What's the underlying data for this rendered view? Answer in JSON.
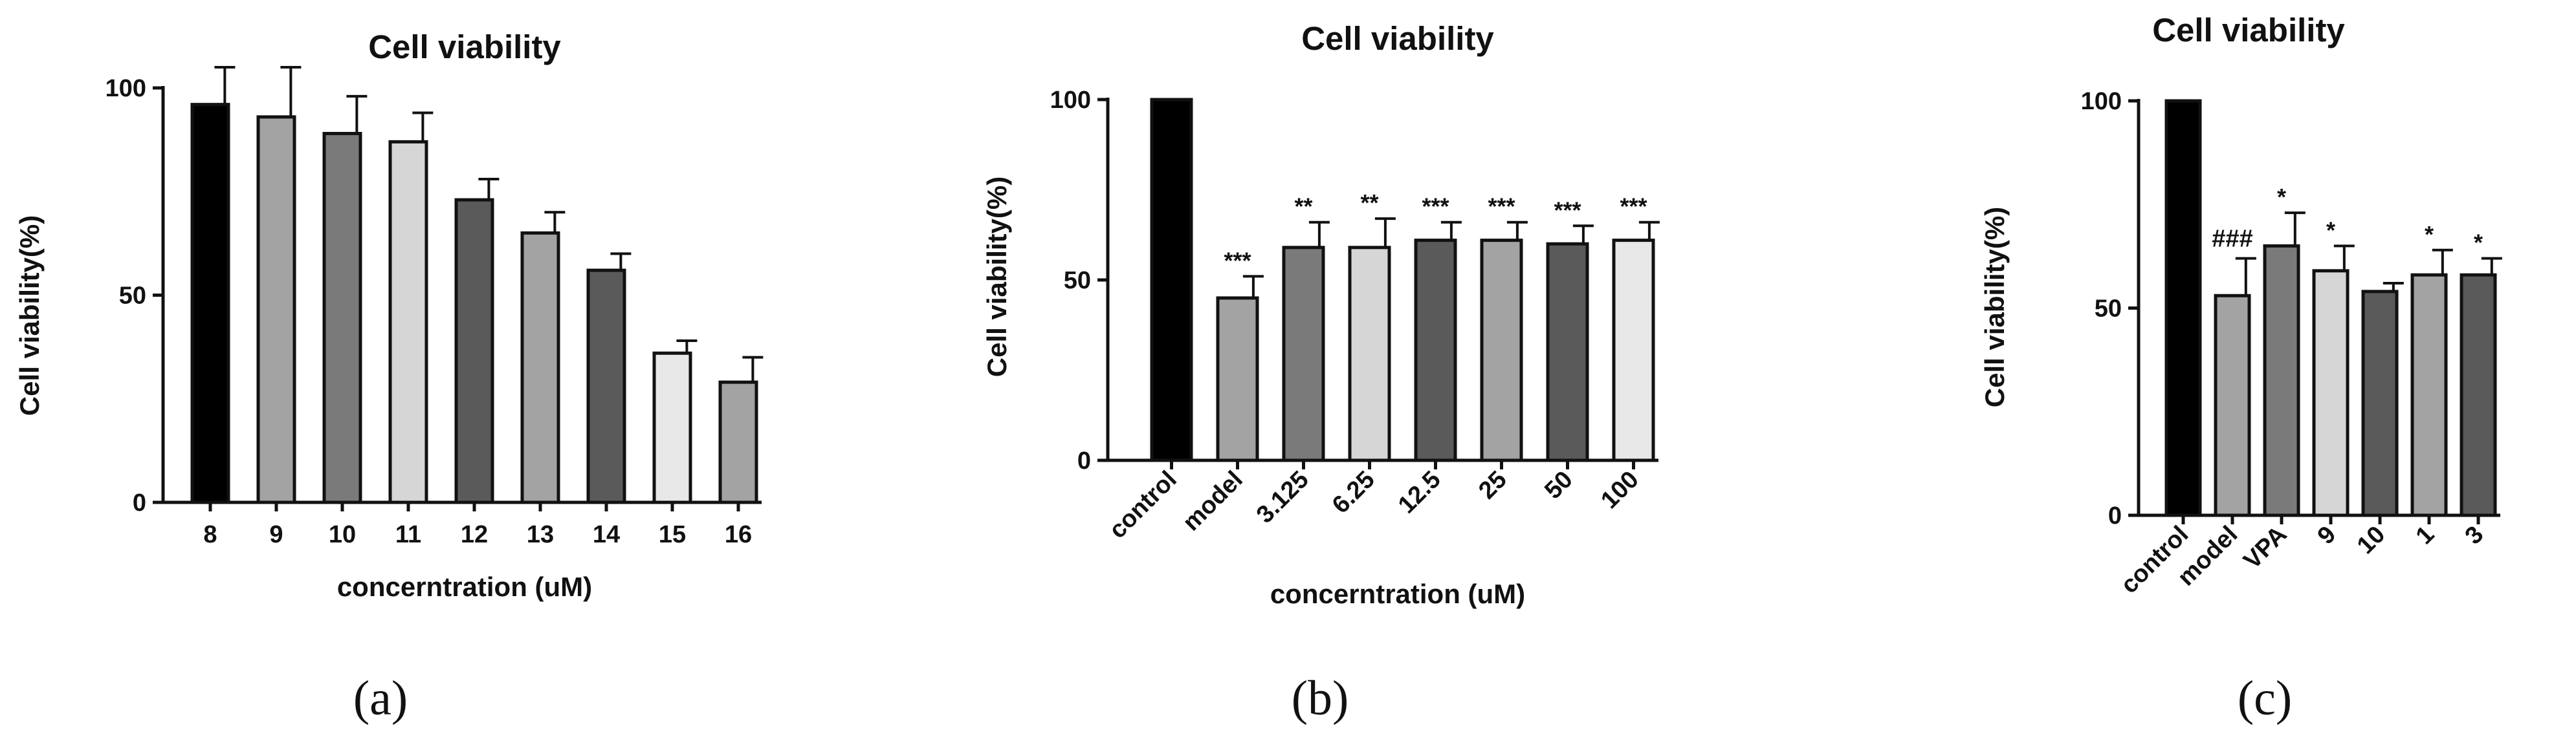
{
  "chart_data": [
    {
      "type": "bar",
      "title": "Cell viability",
      "xlabel": "concerntration (uM)",
      "ylabel": "Cell viability(%)",
      "caption": "(a)",
      "ylim": [
        0,
        100
      ],
      "yticks": [
        "0",
        "50",
        "100"
      ],
      "categories": [
        "8",
        "9",
        "10",
        "11",
        "12",
        "13",
        "14",
        "15",
        "16"
      ],
      "values": [
        96,
        93,
        89,
        87,
        73,
        65,
        56,
        36,
        29
      ],
      "errors": [
        9,
        12,
        9,
        7,
        5,
        5,
        4,
        3,
        6
      ],
      "significance": [
        "",
        "",
        "",
        "",
        "",
        "",
        "",
        "",
        ""
      ],
      "colors": [
        "#000000",
        "#a3a3a3",
        "#7a7a7a",
        "#d6d6d6",
        "#5a5a5a",
        "#a3a3a3",
        "#5a5a5a",
        "#e8e8e8",
        "#a3a3a3"
      ]
    },
    {
      "type": "bar",
      "title": "Cell viability",
      "xlabel": "concerntration (uM)",
      "ylabel": "Cell viability(%)",
      "caption": "(b)",
      "ylim": [
        0,
        100
      ],
      "yticks": [
        "0",
        "50",
        "100"
      ],
      "categories": [
        "control",
        "model",
        "3.125",
        "6.25",
        "12.5",
        "25",
        "50",
        "100"
      ],
      "values": [
        100,
        45,
        59,
        59,
        61,
        61,
        60,
        61
      ],
      "errors": [
        0,
        6,
        7,
        8,
        5,
        5,
        5,
        5
      ],
      "significance": [
        "",
        "***",
        "**",
        "**",
        "***",
        "***",
        "***",
        "***"
      ],
      "colors": [
        "#000000",
        "#a3a3a3",
        "#7a7a7a",
        "#d6d6d6",
        "#5a5a5a",
        "#a3a3a3",
        "#5a5a5a",
        "#e8e8e8"
      ]
    },
    {
      "type": "bar",
      "title": "Cell viability",
      "xlabel": "",
      "ylabel": "Cell viability(%)",
      "caption": "(c)",
      "ylim": [
        0,
        100
      ],
      "yticks": [
        "0",
        "50",
        "100"
      ],
      "categories": [
        "control",
        "model",
        "VPA",
        "9",
        "10",
        "1",
        "3"
      ],
      "values": [
        100,
        53,
        65,
        59,
        54,
        58,
        58
      ],
      "errors": [
        0,
        9,
        8,
        6,
        2,
        6,
        4
      ],
      "significance": [
        "",
        "###",
        "*",
        "*",
        "",
        "*",
        "*"
      ],
      "colors": [
        "#000000",
        "#a3a3a3",
        "#7a7a7a",
        "#d6d6d6",
        "#5a5a5a",
        "#a3a3a3",
        "#5a5a5a"
      ]
    }
  ]
}
